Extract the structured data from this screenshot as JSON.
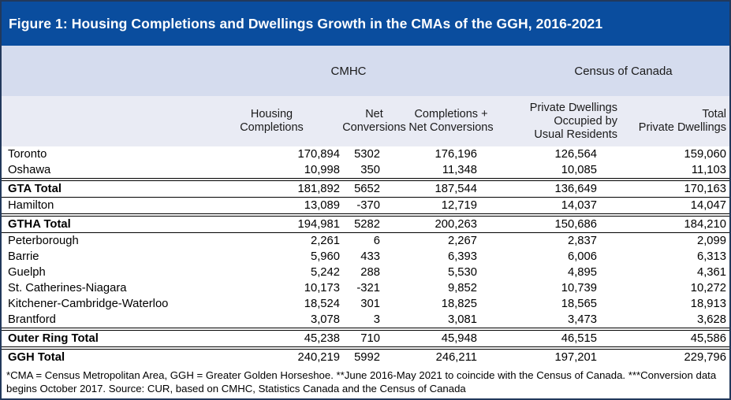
{
  "figure_title": "Figure 1: Housing Completions and Dwellings Growth in the CMAs of the GGH, 2016-2021",
  "chart_data": {
    "type": "table",
    "title": "Figure 1: Housing Completions and Dwellings Growth in the CMAs of the GGH, 2016-2021",
    "group_headers": [
      {
        "label": "CMHC",
        "colspan": 3
      },
      {
        "label": "Census of Canada",
        "colspan": 2
      }
    ],
    "columns": [
      "Housing\nCompletions",
      "Net Conversions",
      "Completions +\nNet Conversions",
      "Private Dwellings\nOccupied by\nUsual Residents",
      "Total\nPrivate Dwellings"
    ],
    "rows": [
      {
        "label": "Toronto",
        "values": [
          "170,894",
          "5302",
          "176,196",
          "126,564",
          "159,060"
        ],
        "total": false
      },
      {
        "label": "Oshawa",
        "values": [
          "10,998",
          "350",
          "11,348",
          "10,085",
          "11,103"
        ],
        "total": false
      },
      {
        "label": "GTA Total",
        "values": [
          "181,892",
          "5652",
          "187,544",
          "136,649",
          "170,163"
        ],
        "total": true
      },
      {
        "label": "Hamilton",
        "values": [
          "13,089",
          "-370",
          "12,719",
          "14,037",
          "14,047"
        ],
        "total": false
      },
      {
        "label": "GTHA Total",
        "values": [
          "194,981",
          "5282",
          "200,263",
          "150,686",
          "184,210"
        ],
        "total": true
      },
      {
        "label": "Peterborough",
        "values": [
          "2,261",
          "6",
          "2,267",
          "2,837",
          "2,099"
        ],
        "total": false
      },
      {
        "label": "Barrie",
        "values": [
          "5,960",
          "433",
          "6,393",
          "6,006",
          "6,313"
        ],
        "total": false
      },
      {
        "label": "Guelph",
        "values": [
          "5,242",
          "288",
          "5,530",
          "4,895",
          "4,361"
        ],
        "total": false
      },
      {
        "label": "St. Catherines-Niagara",
        "values": [
          "10,173",
          "-321",
          "9,852",
          "10,739",
          "10,272"
        ],
        "total": false
      },
      {
        "label": "Kitchener-Cambridge-Waterloo",
        "values": [
          "18,524",
          "301",
          "18,825",
          "18,565",
          "18,913"
        ],
        "total": false
      },
      {
        "label": "Brantford",
        "values": [
          "3,078",
          "3",
          "3,081",
          "3,473",
          "3,628"
        ],
        "total": false
      },
      {
        "label": "Outer Ring Total",
        "values": [
          "45,238",
          "710",
          "45,948",
          "46,515",
          "45,586"
        ],
        "total": true
      },
      {
        "label": "GGH Total",
        "values": [
          "240,219",
          "5992",
          "246,211",
          "197,201",
          "229,796"
        ],
        "total": true,
        "last": true
      }
    ]
  },
  "footnote": "*CMA = Census Metropolitan Area, GGH = Greater Golden Horseshoe. **June 2016-May 2021 to coincide with the Census of Canada. ***Conversion data begins October 2017. Source: CUR, based on CMHC, Statistics Canada and the Census of Canada",
  "colors": {
    "title_bg": "#0a4d9e",
    "title_text": "#ffffff",
    "group_band_bg": "#d5dcee",
    "header_band_bg": "#e9ebf4",
    "row_bg": "#ffffff",
    "text": "#000000",
    "total_border": "#000000",
    "outer_border": "#22395c"
  }
}
